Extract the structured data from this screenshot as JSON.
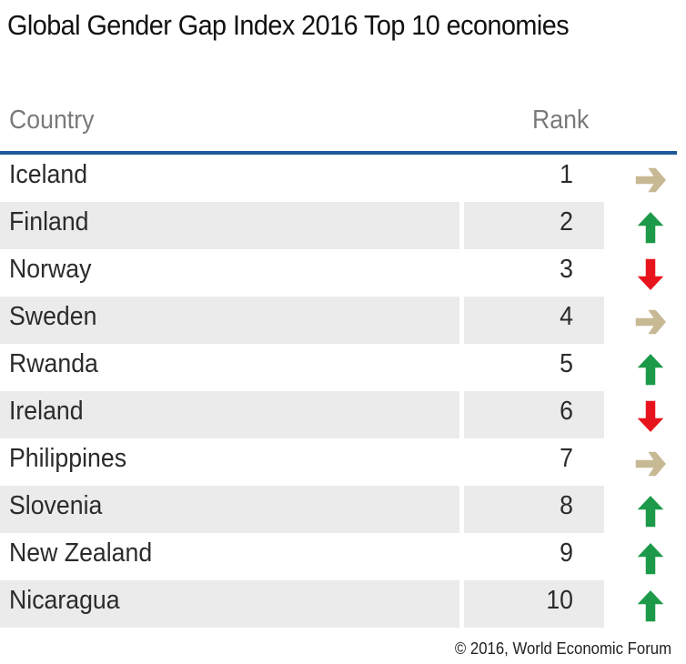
{
  "title": "Global Gender Gap Index 2016 Top 10 economies",
  "footer": "© 2016, World Economic Forum",
  "colors": {
    "up": "#1c9a4a",
    "down": "#e8141d",
    "same": "#c7b994",
    "rule": "#1d5a99"
  },
  "chart_data": {
    "type": "table",
    "columns": [
      "Country",
      "Rank"
    ],
    "rows": [
      {
        "country": "Iceland",
        "rank": "1",
        "trend": "same"
      },
      {
        "country": "Finland",
        "rank": "2",
        "trend": "up"
      },
      {
        "country": "Norway",
        "rank": "3",
        "trend": "down"
      },
      {
        "country": "Sweden",
        "rank": "4",
        "trend": "same"
      },
      {
        "country": "Rwanda",
        "rank": "5",
        "trend": "up"
      },
      {
        "country": "Ireland",
        "rank": "6",
        "trend": "down"
      },
      {
        "country": "Philippines",
        "rank": "7",
        "trend": "same"
      },
      {
        "country": "Slovenia",
        "rank": "8",
        "trend": "up"
      },
      {
        "country": "New Zealand",
        "rank": "9",
        "trend": "up"
      },
      {
        "country": "Nicaragua",
        "rank": "10",
        "trend": "up"
      }
    ]
  }
}
